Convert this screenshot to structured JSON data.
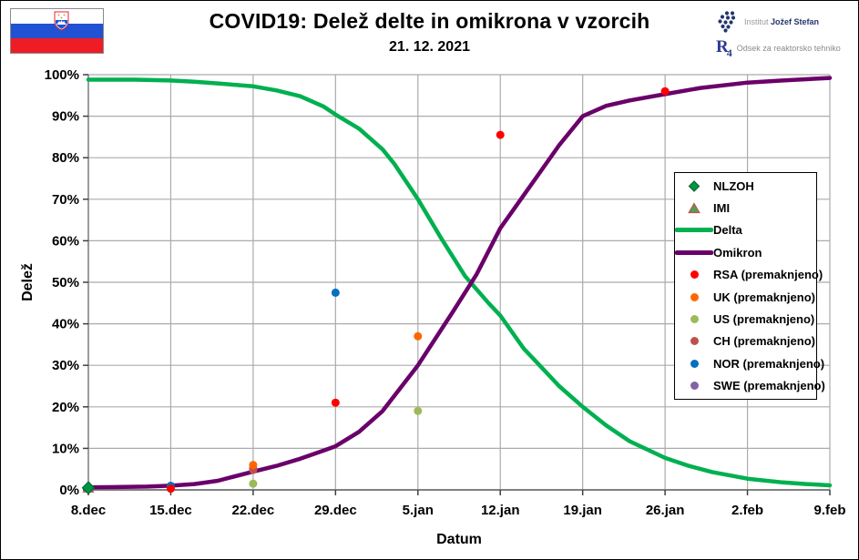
{
  "header": {
    "title": "COVID19: Delež delte in omikrona v vzorcih",
    "subtitle": "21. 12. 2021"
  },
  "branding": {
    "flag_colors": {
      "white": "#FFFFFF",
      "blue": "#2052D3",
      "red": "#EE1C25"
    },
    "institute": {
      "prefix": "Institut",
      "name": "Jožef Stefan",
      "logo_color": "#24356B"
    },
    "department": {
      "logo_text": "R",
      "logo_sub": "4",
      "label": "Odsek za reaktorsko tehniko",
      "logo_color": "#2B3990"
    }
  },
  "chart_data": {
    "type": "line",
    "title": "COVID19: Delež delte in omikrona v vzorcih",
    "subtitle": "21. 12. 2021",
    "xlabel": "Datum",
    "ylabel": "Delež",
    "x_tick_labels": [
      "8.dec",
      "15.dec",
      "22.dec",
      "29.dec",
      "5.jan",
      "12.jan",
      "19.jan",
      "26.jan",
      "2.feb",
      "9.feb"
    ],
    "x_tick_days": [
      0,
      7,
      14,
      21,
      28,
      35,
      42,
      49,
      56,
      63
    ],
    "y_tick_values": [
      0,
      10,
      20,
      30,
      40,
      50,
      60,
      70,
      80,
      90,
      100
    ],
    "y_tick_labels": [
      "0%",
      "10%",
      "20%",
      "30%",
      "40%",
      "50%",
      "60%",
      "70%",
      "80%",
      "90%",
      "100%"
    ],
    "xlim_days": [
      0,
      63
    ],
    "ylim": [
      0,
      100
    ],
    "grid": true,
    "legend_position": "middle-right",
    "colors": {
      "grid": "#ABABAB",
      "axis": "#808080",
      "tick": "#404040"
    },
    "series": [
      {
        "name": "NLZOH",
        "type": "scatter",
        "marker": "diamond",
        "color": "#009640",
        "edge": "#006837",
        "points": [
          [
            0,
            0.5
          ]
        ]
      },
      {
        "name": "IMI",
        "type": "scatter",
        "marker": "triangle",
        "color": "#4EA24E",
        "edge": "#C0504D",
        "points": [
          [
            0,
            0.5
          ]
        ]
      },
      {
        "name": "Delta",
        "type": "line",
        "color": "#00B050",
        "points": [
          [
            0,
            98.8
          ],
          [
            2,
            98.8
          ],
          [
            4,
            98.8
          ],
          [
            7,
            98.6
          ],
          [
            9,
            98.3
          ],
          [
            11,
            97.9
          ],
          [
            14,
            97.2
          ],
          [
            16,
            96.2
          ],
          [
            18,
            94.8
          ],
          [
            20,
            92.3
          ],
          [
            21,
            90.4
          ],
          [
            23,
            87
          ],
          [
            25,
            82
          ],
          [
            26,
            78.5
          ],
          [
            28,
            70
          ],
          [
            30,
            60.5
          ],
          [
            32,
            51.5
          ],
          [
            34,
            45
          ],
          [
            35,
            42
          ],
          [
            37,
            34
          ],
          [
            38,
            31
          ],
          [
            40,
            25
          ],
          [
            42,
            20
          ],
          [
            44,
            15.5
          ],
          [
            46,
            11.7
          ],
          [
            49,
            7.7
          ],
          [
            51,
            5.8
          ],
          [
            53,
            4.3
          ],
          [
            56,
            2.7
          ],
          [
            59,
            1.8
          ],
          [
            61,
            1.4
          ],
          [
            63,
            1.1
          ]
        ]
      },
      {
        "name": "Omikron",
        "type": "line",
        "color": "#6A006A",
        "points": [
          [
            0,
            0.6
          ],
          [
            3,
            0.7
          ],
          [
            5,
            0.8
          ],
          [
            7,
            1.0
          ],
          [
            9,
            1.4
          ],
          [
            11,
            2.2
          ],
          [
            14,
            4.4
          ],
          [
            16,
            5.8
          ],
          [
            18,
            7.5
          ],
          [
            20,
            9.5
          ],
          [
            21,
            10.5
          ],
          [
            23,
            14
          ],
          [
            25,
            19
          ],
          [
            28,
            30
          ],
          [
            31,
            43
          ],
          [
            33,
            52
          ],
          [
            35,
            63
          ],
          [
            37,
            71
          ],
          [
            38,
            75
          ],
          [
            40,
            83
          ],
          [
            42,
            90
          ],
          [
            44,
            92.5
          ],
          [
            46,
            93.8
          ],
          [
            49,
            95.3
          ],
          [
            52,
            96.8
          ],
          [
            56,
            98.1
          ],
          [
            59,
            98.6
          ],
          [
            63,
            99.2
          ]
        ]
      },
      {
        "name": "RSA (premaknjeno)",
        "type": "scatter",
        "marker": "circle",
        "color": "#FF0000",
        "points": [
          [
            7,
            0.3
          ],
          [
            21,
            21
          ],
          [
            35,
            85.5
          ],
          [
            49,
            96
          ]
        ]
      },
      {
        "name": "UK (premaknjeno)",
        "type": "scatter",
        "marker": "circle",
        "color": "#FF6600",
        "points": [
          [
            14,
            6
          ],
          [
            28,
            37
          ]
        ]
      },
      {
        "name": "US (premaknjeno)",
        "type": "scatter",
        "marker": "circle",
        "color": "#9BBB59",
        "points": [
          [
            14,
            1.5
          ],
          [
            28,
            19
          ]
        ]
      },
      {
        "name": "CH (premaknjeno)",
        "type": "scatter",
        "marker": "circle",
        "color": "#C0504D",
        "points": [
          [
            14,
            4.8
          ]
        ]
      },
      {
        "name": "NOR (premaknjeno)",
        "type": "scatter",
        "marker": "circle",
        "color": "#0070C0",
        "points": [
          [
            7,
            1.0
          ],
          [
            21,
            47.5
          ]
        ]
      },
      {
        "name": "SWE (premaknjeno)",
        "type": "scatter",
        "marker": "circle",
        "color": "#8064A2",
        "points": [
          [
            0,
            0.5
          ],
          [
            14,
            5.2
          ]
        ]
      }
    ]
  }
}
